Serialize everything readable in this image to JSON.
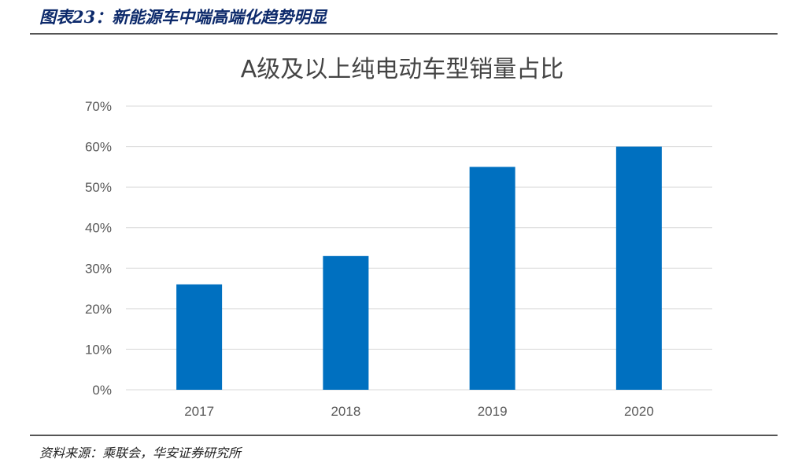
{
  "header": {
    "figure_title": "图表23：新能源车中端高端化趋势明显"
  },
  "footer": {
    "source": "资料来源：乘联会，华安证券研究所"
  },
  "chart_data": {
    "type": "bar",
    "title": "A级及以上纯电动车型销量占比",
    "categories": [
      "2017",
      "2018",
      "2019",
      "2020"
    ],
    "values": [
      26,
      33,
      55,
      60
    ],
    "ylim": [
      0,
      70
    ],
    "yticks": [
      "0%",
      "10%",
      "20%",
      "30%",
      "40%",
      "50%",
      "60%",
      "70%"
    ],
    "ytick_values": [
      0,
      10,
      20,
      30,
      40,
      50,
      60,
      70
    ],
    "xlabel": "",
    "ylabel": "",
    "grid": true,
    "bar_color": "#0070c0"
  }
}
